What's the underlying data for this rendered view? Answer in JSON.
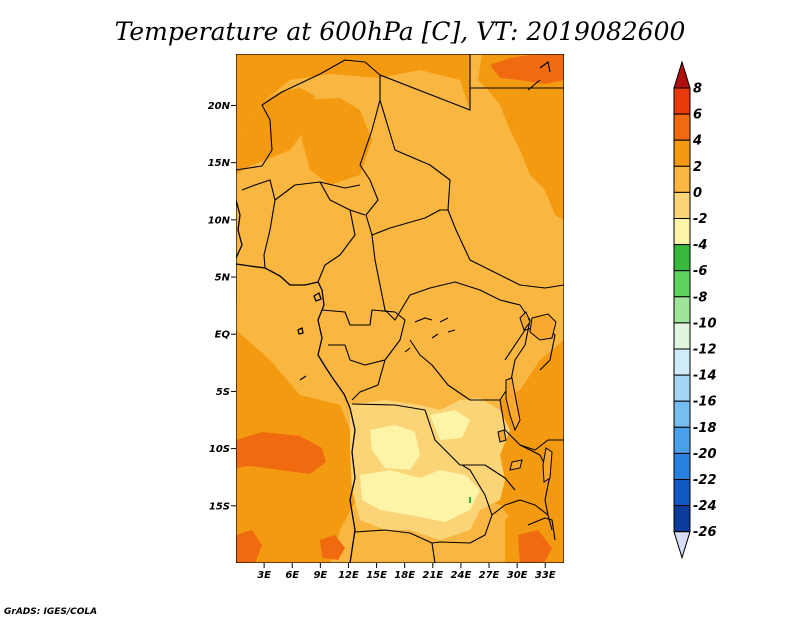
{
  "title": "Temperature at 600hPa [C], VT: 2019082600",
  "credit": "GrADS: IGES/COLA",
  "axes": {
    "lat_ticks": [
      {
        "label": "20N",
        "value": 20
      },
      {
        "label": "15N",
        "value": 15
      },
      {
        "label": "10N",
        "value": 10
      },
      {
        "label": "5N",
        "value": 5
      },
      {
        "label": "EQ",
        "value": 0
      },
      {
        "label": "5S",
        "value": -5
      },
      {
        "label": "10S",
        "value": -10
      },
      {
        "label": "15S",
        "value": -15
      }
    ],
    "lon_ticks": [
      {
        "label": "3E",
        "value": 3
      },
      {
        "label": "6E",
        "value": 6
      },
      {
        "label": "9E",
        "value": 9
      },
      {
        "label": "12E",
        "value": 12
      },
      {
        "label": "15E",
        "value": 15
      },
      {
        "label": "18E",
        "value": 18
      },
      {
        "label": "21E",
        "value": 21
      },
      {
        "label": "24E",
        "value": 24
      },
      {
        "label": "27E",
        "value": 27
      },
      {
        "label": "30E",
        "value": 30
      },
      {
        "label": "33E",
        "value": 33
      }
    ],
    "lon_range": [
      0,
      35
    ],
    "lat_range": [
      -20,
      24.5
    ]
  },
  "colorbar": {
    "levels": [
      "8",
      "6",
      "4",
      "2",
      "0",
      "-2",
      "-4",
      "-6",
      "-8",
      "-10",
      "-12",
      "-14",
      "-16",
      "-18",
      "-20",
      "-22",
      "-24",
      "-26"
    ],
    "colors": [
      "#b01010",
      "#e83a0a",
      "#f06a10",
      "#f49a10",
      "#f9b640",
      "#fbd477",
      "#fdf4a8",
      "#39b93c",
      "#5fd35f",
      "#9ee49b",
      "#e0f6df",
      "#d0ecf8",
      "#a5d6f5",
      "#76bdf0",
      "#4aa0ea",
      "#2a80df",
      "#1158c3",
      "#0a3a9a",
      "#06226e",
      "#d8dcf8"
    ]
  },
  "colors": {
    "base_fill": "#f9b640",
    "warm_fill": "#f49a10",
    "hot_fill": "#f06a10",
    "cool_fill": "#fbd477",
    "coolest_fill": "#fdf4a8",
    "green_dot": "#39b93c"
  }
}
